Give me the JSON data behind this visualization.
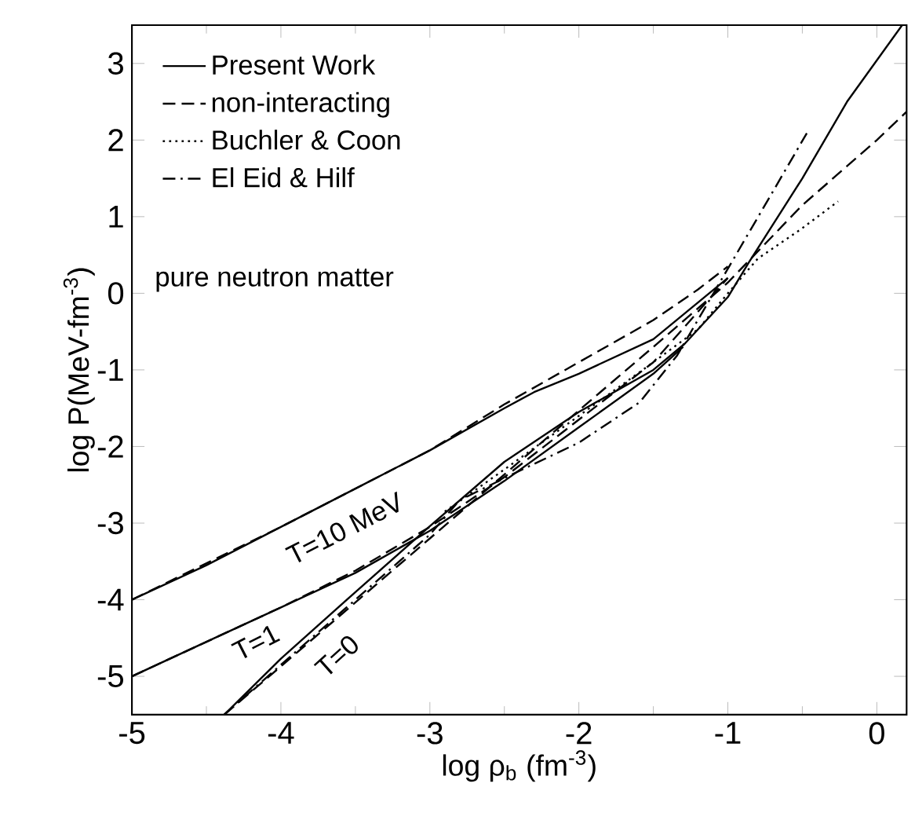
{
  "chart_data": {
    "type": "line",
    "xlabel": "log ρ$_{b}$ (fm$^{-3}$)",
    "ylabel": "log P(MeV-fm$^{-3}$)",
    "xlim": [
      -5,
      0.2
    ],
    "ylim": [
      -5.5,
      3.5
    ],
    "xticks": [
      -5,
      -4,
      -3,
      -2,
      -1,
      0
    ],
    "yticks": [
      -5,
      -4,
      -3,
      -2,
      -1,
      0,
      1,
      2,
      3
    ],
    "legend": "top left",
    "marker": "none",
    "series": [
      {
        "name": "Present Work",
        "color": "#000000",
        "line_style": "solid",
        "x": [
          -4.38,
          -4,
          -3.5,
          -3,
          -2.5,
          -2,
          -1.5,
          -1.29,
          -1.0,
          -0.86,
          -0.5,
          -0.2,
          0.17
        ],
        "values": [
          -5.5,
          -4.77,
          -3.9,
          -3.04,
          -2.2,
          -1.55,
          -1.0,
          -0.66,
          -0.05,
          0.4,
          1.5,
          2.5,
          3.5
        ]
      },
      {
        "color": "#000000",
        "line_style": "solid",
        "x": [
          -5,
          -4.5,
          -4,
          -3.5,
          -3,
          -2.5,
          -2,
          -1.5,
          -1.3
        ],
        "values": [
          -5,
          -4.55,
          -4.1,
          -3.65,
          -3.1,
          -2.45,
          -1.75,
          -1.05,
          -0.7
        ]
      },
      {
        "color": "#000000",
        "line_style": "solid",
        "x": [
          -5,
          -4.5,
          -4,
          -3.5,
          -3,
          -2.5,
          -2.3,
          -2,
          -1.5,
          -1.0
        ],
        "values": [
          -4,
          -3.55,
          -3.05,
          -2.55,
          -2.05,
          -1.5,
          -1.29,
          -1.05,
          -0.6,
          0.2
        ]
      },
      {
        "name": "non-interacting",
        "color": "#000000",
        "line_style": "dashed",
        "x": [
          -4.38,
          -4,
          -3,
          -2,
          -1.5,
          -1,
          -0.5,
          0,
          0.2
        ],
        "values": [
          -5.5,
          -4.87,
          -3.2,
          -1.53,
          -0.7,
          0.14,
          1.15,
          2.0,
          2.37
        ]
      },
      {
        "color": "#000000",
        "line_style": "dashed",
        "x": [
          -5,
          -4,
          -3.5,
          -3,
          -2.5,
          -2,
          -1.5,
          -1.0
        ],
        "values": [
          -5,
          -4.1,
          -3.62,
          -3.05,
          -2.4,
          -1.65,
          -0.9,
          0.2
        ]
      },
      {
        "color": "#000000",
        "line_style": "dashed",
        "x": [
          -5,
          -4,
          -3,
          -2.5,
          -2,
          -1.5,
          -1.2,
          -1.0
        ],
        "values": [
          -4,
          -3.05,
          -2.05,
          -1.45,
          -0.9,
          -0.35,
          0.05,
          0.35
        ]
      },
      {
        "name": "Buchler & Coon",
        "color": "#000000",
        "line_style": "dotted",
        "x": [
          -2.9,
          -2.5,
          -2,
          -1.5,
          -1.2,
          -1.0,
          -0.8,
          -0.5,
          -0.26
        ],
        "values": [
          -2.85,
          -2.3,
          -1.6,
          -0.9,
          -0.47,
          0.0,
          0.45,
          0.85,
          1.2
        ]
      },
      {
        "name": "El Eid & Hilf",
        "color": "#000000",
        "line_style": "dashdot",
        "x": [
          -4.38,
          -4,
          -3.5,
          -3,
          -2.8,
          -2.39,
          -2,
          -1.59,
          -1.34,
          -1.0,
          -0.7,
          -0.47
        ],
        "values": [
          -5.5,
          -4.85,
          -4.0,
          -3.15,
          -2.7,
          -2.31,
          -1.95,
          -1.42,
          -0.81,
          0.32,
          1.32,
          2.09
        ]
      }
    ],
    "annotations": [
      "pure neutron matter",
      "T=10 MeV",
      "T=1",
      "T=0"
    ]
  }
}
